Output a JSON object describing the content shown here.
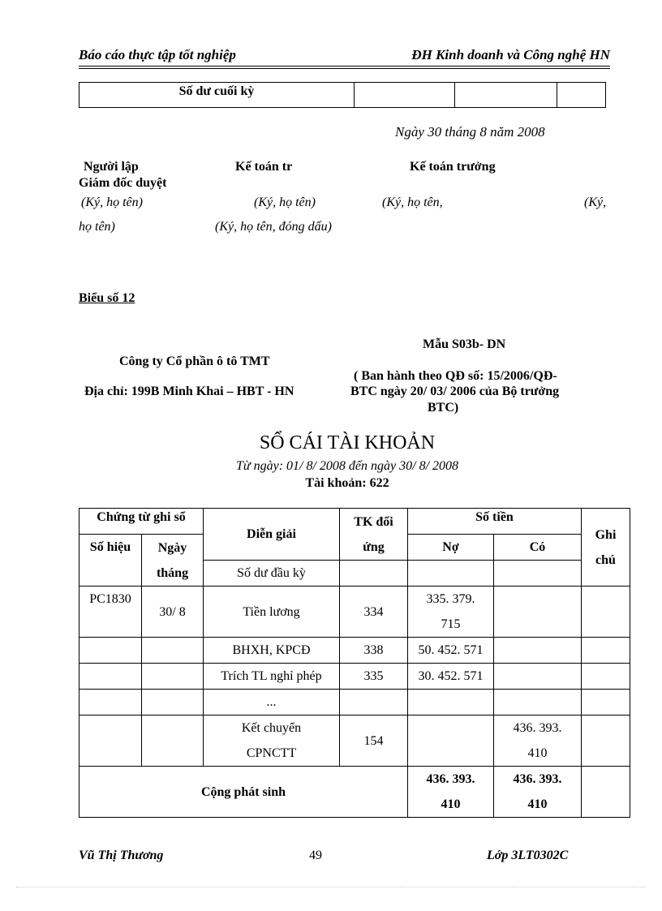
{
  "header": {
    "left": "Báo cáo thực tập tốt nghiệp",
    "right": "ĐH Kinh doanh và Công nghệ HN"
  },
  "prev_table": {
    "label": "Số dư cuối kỳ"
  },
  "date_line": "Ngày 30 tháng 8 năm 2008",
  "signatures": {
    "titles": [
      "Người lập",
      "Kế toán tr",
      "Kế toán trưởng",
      "Giám đốc duyệt"
    ],
    "notes_line1": [
      "(Ký, họ tên)",
      "(Ký, họ tên)",
      "(Ký, họ tên,",
      "(Ký,"
    ],
    "notes_line2": [
      "họ tên)",
      "(Ký, họ tên, đóng dấu)"
    ]
  },
  "exhibit": "Biểu số 12",
  "company": {
    "name": "Công ty Cổ phần ô tô TMT",
    "address": "Địa chỉ: 199B Minh Khai – HBT - HN"
  },
  "form": {
    "code": "Mẫu S03b- DN",
    "issued_1": "( Ban hành theo QĐ số: 15/2006/QĐ-",
    "issued_2": "BTC ngày 20/ 03/ 2006 của Bộ trưởng",
    "issued_3": "BTC)"
  },
  "title": "SỔ CÁI TÀI KHOẢN",
  "period": "Từ ngày: 01/ 8/ 2008 đến ngày 30/ 8/ 2008",
  "account": "Tài khoản: 622",
  "ledger": {
    "headers": {
      "voucher": "Chứng từ ghi sổ",
      "voucher_no": "Số hiệu",
      "voucher_date_1": "Ngày",
      "voucher_date_2": "tháng",
      "description": "Diễn giải",
      "contra_1": "TK đối",
      "contra_2": "ứng",
      "amount": "Số tiền",
      "debit": "Nợ",
      "credit": "Có",
      "note_1": "Ghi",
      "note_2": "chú"
    },
    "opening": "Số dư đầu kỳ",
    "rows": [
      {
        "no": "PC1830",
        "date": "30/ 8",
        "desc": "Tiền lương",
        "acct": "334",
        "debit_1": "335. 379.",
        "debit_2": "715",
        "credit": ""
      },
      {
        "no": "",
        "date": "",
        "desc": "BHXH, KPCĐ",
        "acct": "338",
        "debit_1": "50. 452. 571",
        "debit_2": "",
        "credit": ""
      },
      {
        "no": "",
        "date": "",
        "desc": "Trích TL nghỉ phép",
        "acct": "335",
        "debit_1": "30. 452. 571",
        "debit_2": "",
        "credit": ""
      },
      {
        "no": "",
        "date": "",
        "desc": "...",
        "acct": "",
        "debit_1": "",
        "debit_2": "",
        "credit": ""
      },
      {
        "no": "",
        "date": "",
        "desc_1": "Kết chuyển",
        "desc_2": "CPNCTT",
        "acct": "154",
        "debit_1": "",
        "credit_1": "436. 393.",
        "credit_2": "410"
      }
    ],
    "total": {
      "label": "Cộng phát sinh",
      "debit_1": "436. 393.",
      "debit_2": "410",
      "credit_1": "436. 393.",
      "credit_2": "410"
    }
  },
  "footer": {
    "author": "Vũ Thị Thương",
    "page": "49",
    "class": "Lớp 3LT0302C"
  }
}
